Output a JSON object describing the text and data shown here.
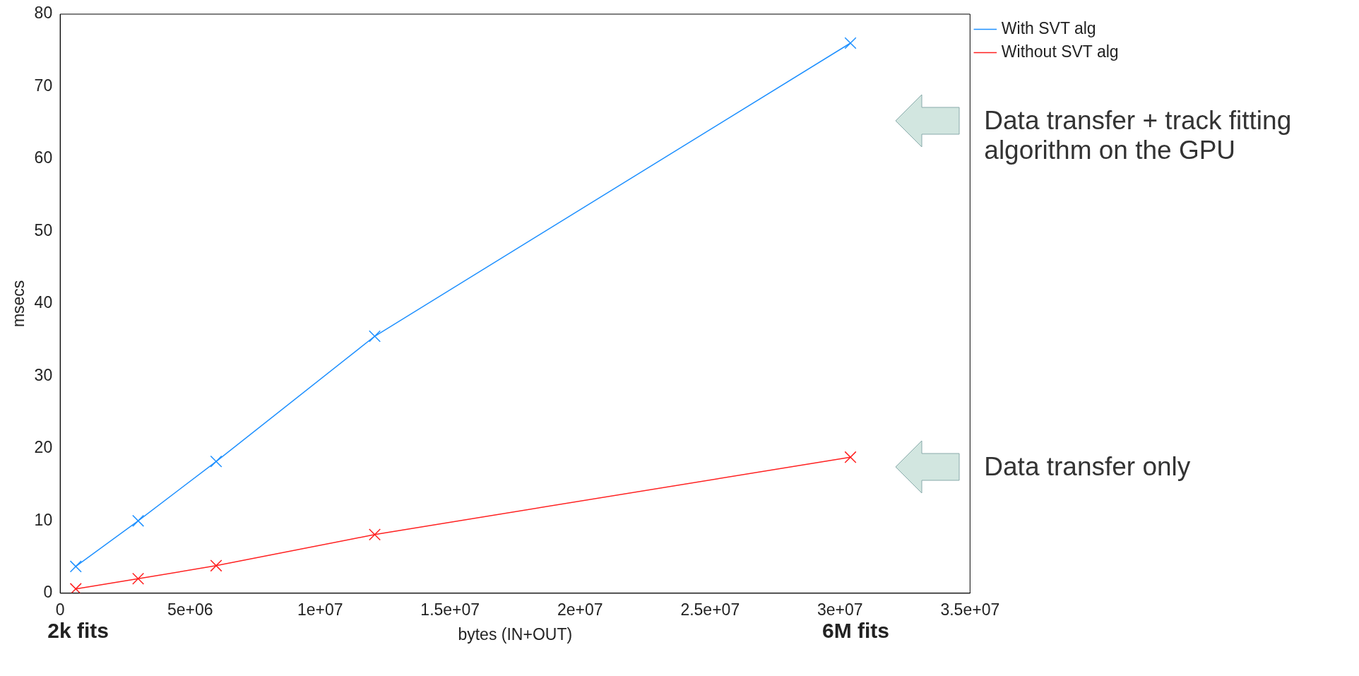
{
  "chart_data": {
    "type": "line",
    "xlabel": "bytes (IN+OUT)",
    "ylabel": "msecs",
    "xlim": [
      0,
      35000000
    ],
    "xticks": [
      0,
      {
        "value": 5000000,
        "label": "5e+06"
      },
      {
        "value": 10000000,
        "label": "1e+07"
      },
      {
        "value": 15000000,
        "label": "1.5e+07"
      },
      {
        "value": 20000000,
        "label": "2e+07"
      },
      {
        "value": 25000000,
        "label": "2.5e+07"
      },
      {
        "value": 30000000,
        "label": "3e+07"
      },
      {
        "value": 35000000,
        "label": "3.5e+07"
      }
    ],
    "ylim": [
      0,
      80
    ],
    "yticks": [
      0,
      10,
      20,
      30,
      40,
      50,
      60,
      70,
      80
    ],
    "x": [
      600000,
      3000000,
      6000000,
      12100000,
      30400000
    ],
    "series": [
      {
        "name": "With SVT alg",
        "color": "#1e90ff",
        "marker": "cross",
        "values": [
          3.7,
          10,
          18.2,
          35.5,
          76
        ]
      },
      {
        "name": "Without SVT alg",
        "color": "#ff2020",
        "marker": "cross",
        "values": [
          0.6,
          2,
          3.8,
          8.1,
          18.8
        ]
      }
    ],
    "grid": false,
    "legend": "top right",
    "line_style": "solid",
    "annotations": [
      "Data transfer + track fitting algorithm on the GPU",
      "Data transfer only",
      "2k fits",
      "6M fits"
    ]
  }
}
